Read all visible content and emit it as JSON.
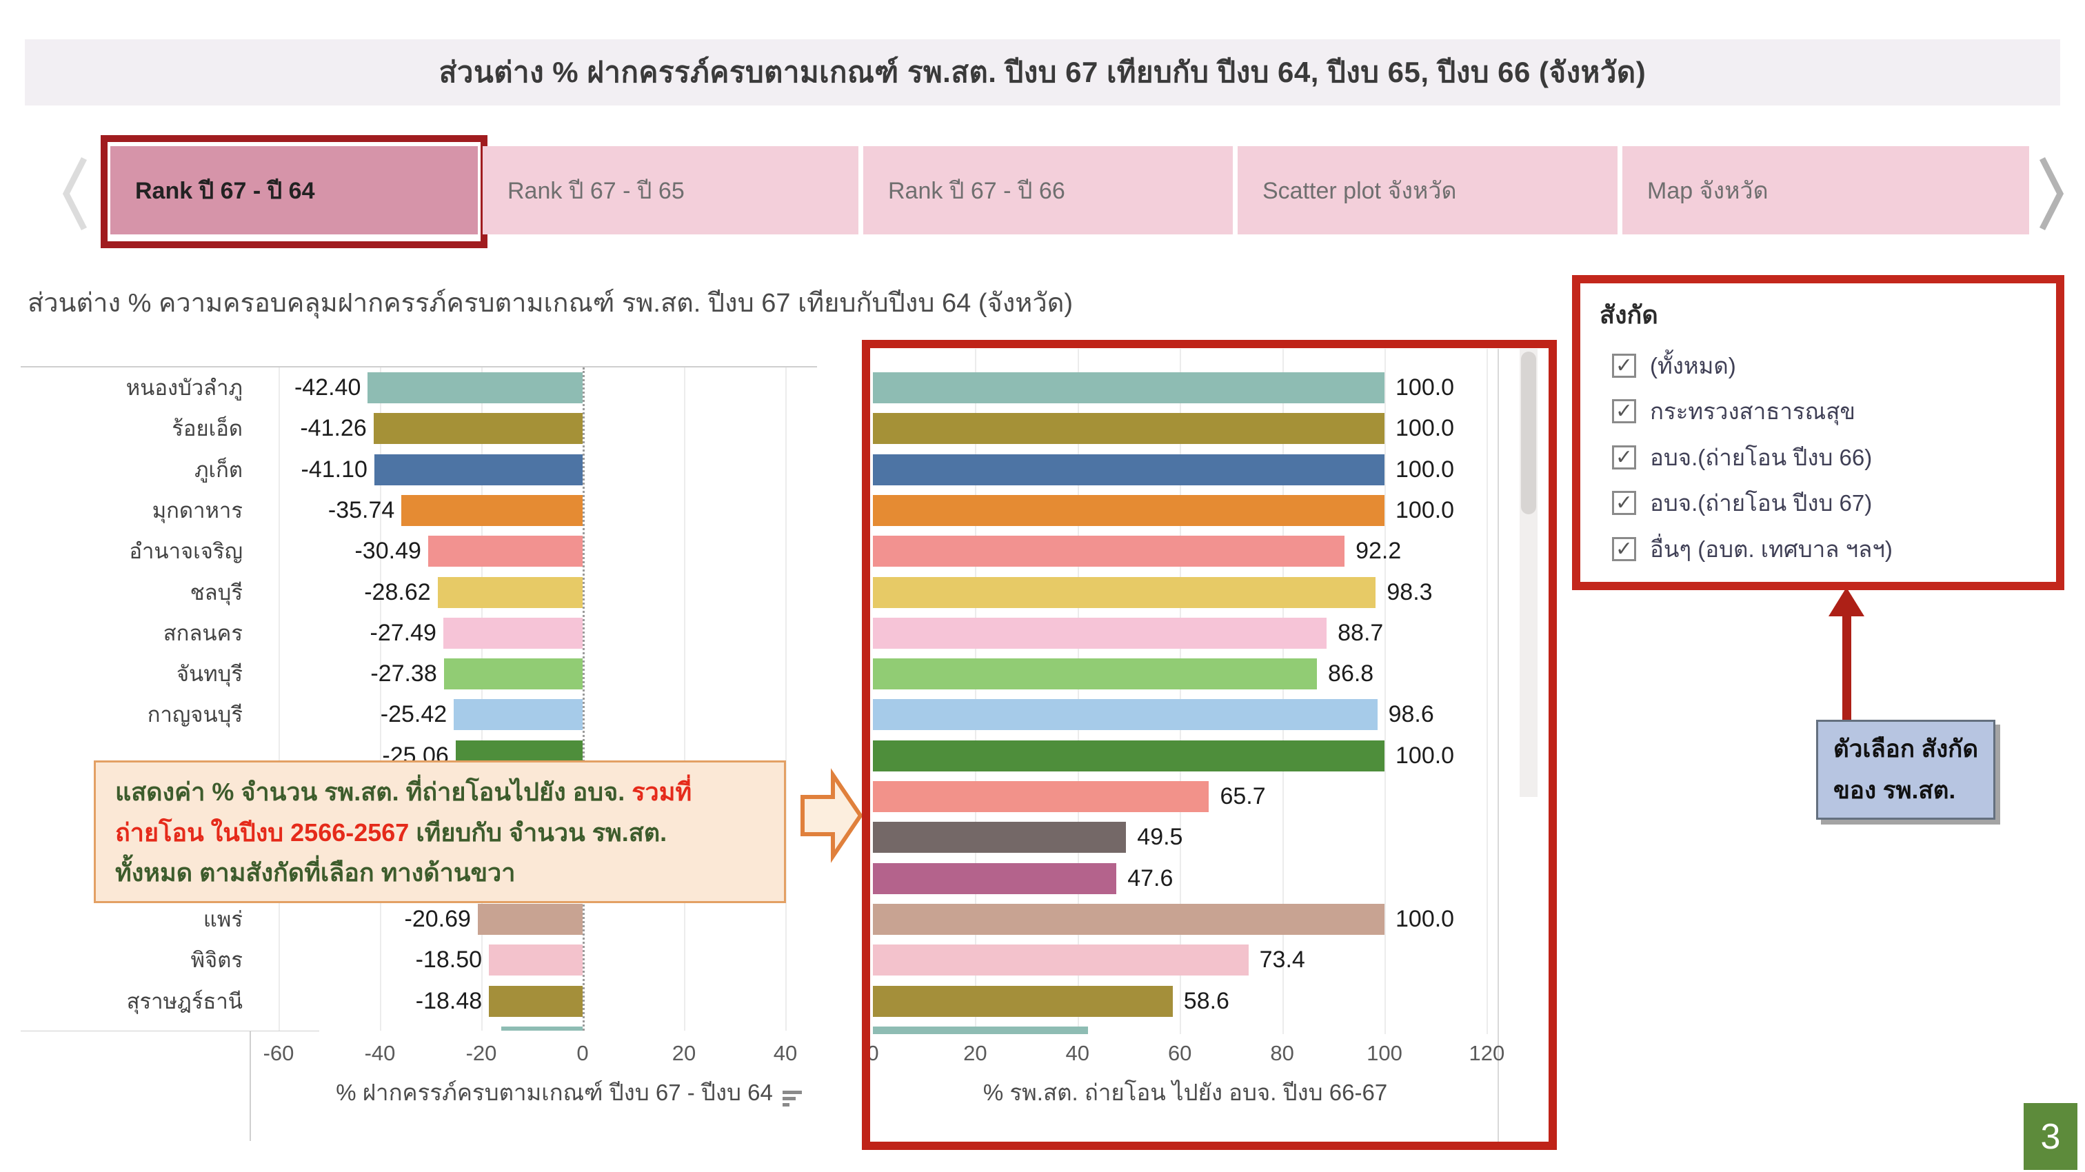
{
  "header": {
    "title": "ส่วนต่าง % ฝากครรภ์ครบตามเกณฑ์ รพ.สต. ปีงบ 67 เทียบกับ ปีงบ 64, ปีงบ 65, ปีงบ 66 (จังหวัด)"
  },
  "tabs": {
    "items": [
      {
        "label": "Rank ปี 67 - ปี 64",
        "active": true
      },
      {
        "label": "Rank ปี 67 - ปี 65",
        "active": false
      },
      {
        "label": "Rank ปี 67 - ปี 66",
        "active": false
      },
      {
        "label": "Scatter plot จังหวัด",
        "active": false
      },
      {
        "label": "Map จังหวัด",
        "active": false
      }
    ]
  },
  "subtitle": "ส่วนต่าง % ความครอบคลุมฝากครรภ์ครบตามเกณฑ์ รพ.สต. ปีงบ 67 เทียบกับปีงบ 64 (จังหวัด)",
  "chart_data": {
    "type": "bar",
    "orientation": "horizontal",
    "title": "ส่วนต่าง % ความครอบคลุมฝากครรภ์ครบตามเกณฑ์ รพ.สต. ปีงบ 67 เทียบกับปีงบ 64 (จังหวัด)",
    "categories": [
      "หนองบัวลำภู",
      "ร้อยเอ็ด",
      "ภูเก็ต",
      "มุกดาหาร",
      "อำนาจเจริญ",
      "ชลบุรี",
      "สกลนคร",
      "จันทบุรี",
      "กาญจนบุรี",
      "",
      "",
      "",
      "",
      "แพร่",
      "พิจิตร",
      "สุราษฎร์ธานี",
      ""
    ],
    "series": [
      {
        "name": "% ฝากครรภ์ครบตามเกณฑ์ ปีงบ 67 - ปีงบ 64",
        "values": [
          -42.4,
          -41.26,
          -41.1,
          -35.74,
          -30.49,
          -28.62,
          -27.49,
          -27.38,
          -25.42,
          -25.06,
          null,
          null,
          null,
          -20.69,
          -18.5,
          -18.48,
          -16.0
        ],
        "labels": [
          "-42.40",
          "-41.26",
          "-41.10",
          "-35.74",
          "-30.49",
          "-28.62",
          "-27.49",
          "-27.38",
          "-25.42",
          "-25.06",
          "",
          "",
          "",
          "-20.69",
          "-18.50",
          "-18.48",
          ""
        ],
        "ticks": [
          -60,
          -40,
          -20,
          0,
          20,
          40
        ],
        "xlim": [
          -62,
          46
        ]
      },
      {
        "name": "% รพ.สต. ถ่ายโอน ไปยัง อบจ. ปีงบ 66-67",
        "values": [
          100.0,
          100.0,
          100.0,
          100.0,
          92.2,
          98.3,
          88.7,
          86.8,
          98.6,
          100.0,
          65.7,
          49.5,
          47.6,
          100.0,
          73.4,
          58.6,
          42.0
        ],
        "labels": [
          "100.0",
          "100.0",
          "100.0",
          "100.0",
          "92.2",
          "98.3",
          "88.7",
          "86.8",
          "98.6",
          "100.0",
          "65.7",
          "49.5",
          "47.6",
          "100.0",
          "73.4",
          "58.6",
          ""
        ],
        "ticks": [
          0,
          20,
          40,
          60,
          80,
          100,
          120
        ],
        "xlim": [
          0,
          122
        ]
      }
    ],
    "bar_colors": [
      "#8ebcb3",
      "#a59137",
      "#4d74a4",
      "#e58b33",
      "#f29290",
      "#e7ca66",
      "#f6c4d7",
      "#91cc74",
      "#a6cbe9",
      "#4e8e3b",
      "#f2928a",
      "#746867",
      "#b4638c",
      "#c8a392",
      "#f3c2cc",
      "#a48f3a",
      "#8ebcb3"
    ],
    "grid": true,
    "legend": "none"
  },
  "annotation_note": {
    "lines": [
      [
        {
          "text": "แสดงค่า % จำนวน รพ.สต. ที่ถ่ายโอนไปยัง อบจ. ",
          "color": "#3d5c2c"
        },
        {
          "text": "รวมที่",
          "color": "#e52a1a"
        }
      ],
      [
        {
          "text": "ถ่ายโอน ในปีงบ 2566-2567",
          "color": "#e52a1a"
        },
        {
          "text": " เทียบกับ จำนวน รพ.สต.",
          "color": "#3d5c2c"
        }
      ],
      [
        {
          "text": "ทั้งหมด ตามสังกัดที่เลือก ทางด้านขวา",
          "color": "#3d5c2c"
        }
      ]
    ]
  },
  "filter_panel": {
    "title": "สังกัด",
    "options": [
      {
        "label": "(ทั้งหมด)",
        "checked": true
      },
      {
        "label": "กระทรวงสาธารณสุข",
        "checked": true
      },
      {
        "label": "อบจ.(ถ่ายโอน ปีงบ 66)",
        "checked": true
      },
      {
        "label": "อบจ.(ถ่ายโอน ปีงบ 67)",
        "checked": true
      },
      {
        "label": "อื่นๆ (อบต. เทศบาล ฯลฯ)",
        "checked": true
      }
    ]
  },
  "callout_blue": {
    "lines": [
      "ตัวเลือก สังกัด",
      "ของ รพ.สต."
    ]
  },
  "page_number": "3",
  "colors": {
    "frame_red": "#bf2318",
    "tab_border_red": "#a01c1f",
    "active_tab_bg": "#d694a9",
    "inactive_tab_bg": "#f3cfda",
    "header_bg": "#f2eff3",
    "note_bg": "#fbe8d6",
    "note_green": "#3d5c2c",
    "note_red": "#e52a1a",
    "blue_box_bg": "#b7c5e1",
    "arrow_red": "#ad2017",
    "page_badge_green": "#5d8b3b"
  }
}
